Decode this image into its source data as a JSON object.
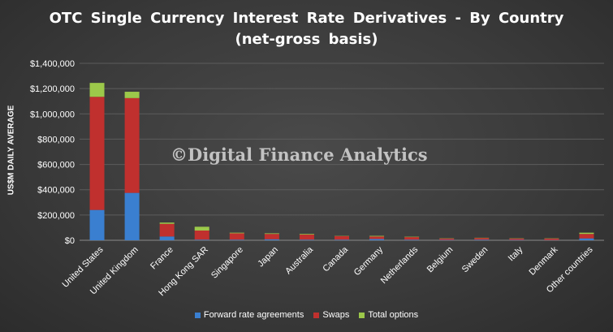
{
  "title_line1": "OTC Single Currency Interest Rate Derivatives - By Country",
  "title_line2": "(net-gross basis)",
  "watermark": "©Digital Finance Analytics",
  "chart_data": {
    "type": "bar",
    "stacked": true,
    "ylabel": "US$M DAILY AVERAGE",
    "ylim": [
      0,
      1400000
    ],
    "yticks": [
      "$0",
      "$200,000",
      "$400,000",
      "$600,000",
      "$800,000",
      "$1,000,000",
      "$1,200,000",
      "$1,400,000"
    ],
    "categories": [
      "United States",
      "United Kingdom",
      "France",
      "Hong Kong SAR",
      "Singapore",
      "Japan",
      "Australia",
      "Canada",
      "Germany",
      "Netherlands",
      "Belgium",
      "Sweden",
      "Italy",
      "Denmark",
      "Other countries"
    ],
    "series": [
      {
        "name": "Forward rate agreements",
        "color": "#3a7fd0",
        "values": [
          240000,
          375000,
          30000,
          5000,
          5000,
          8000,
          5000,
          5000,
          10000,
          5000,
          3000,
          5000,
          3000,
          2000,
          15000
        ]
      },
      {
        "name": "Swaps",
        "color": "#c0302e",
        "values": [
          895000,
          750000,
          100000,
          72000,
          50000,
          42000,
          40000,
          28000,
          20000,
          20000,
          11000,
          13000,
          11000,
          12000,
          35000
        ]
      },
      {
        "name": "Total options",
        "color": "#9cc84a",
        "values": [
          110000,
          50000,
          10000,
          30000,
          5000,
          5000,
          5000,
          2000,
          5000,
          3000,
          2000,
          2000,
          2000,
          2000,
          10000
        ]
      }
    ],
    "legend_position": "bottom",
    "grid": true
  }
}
